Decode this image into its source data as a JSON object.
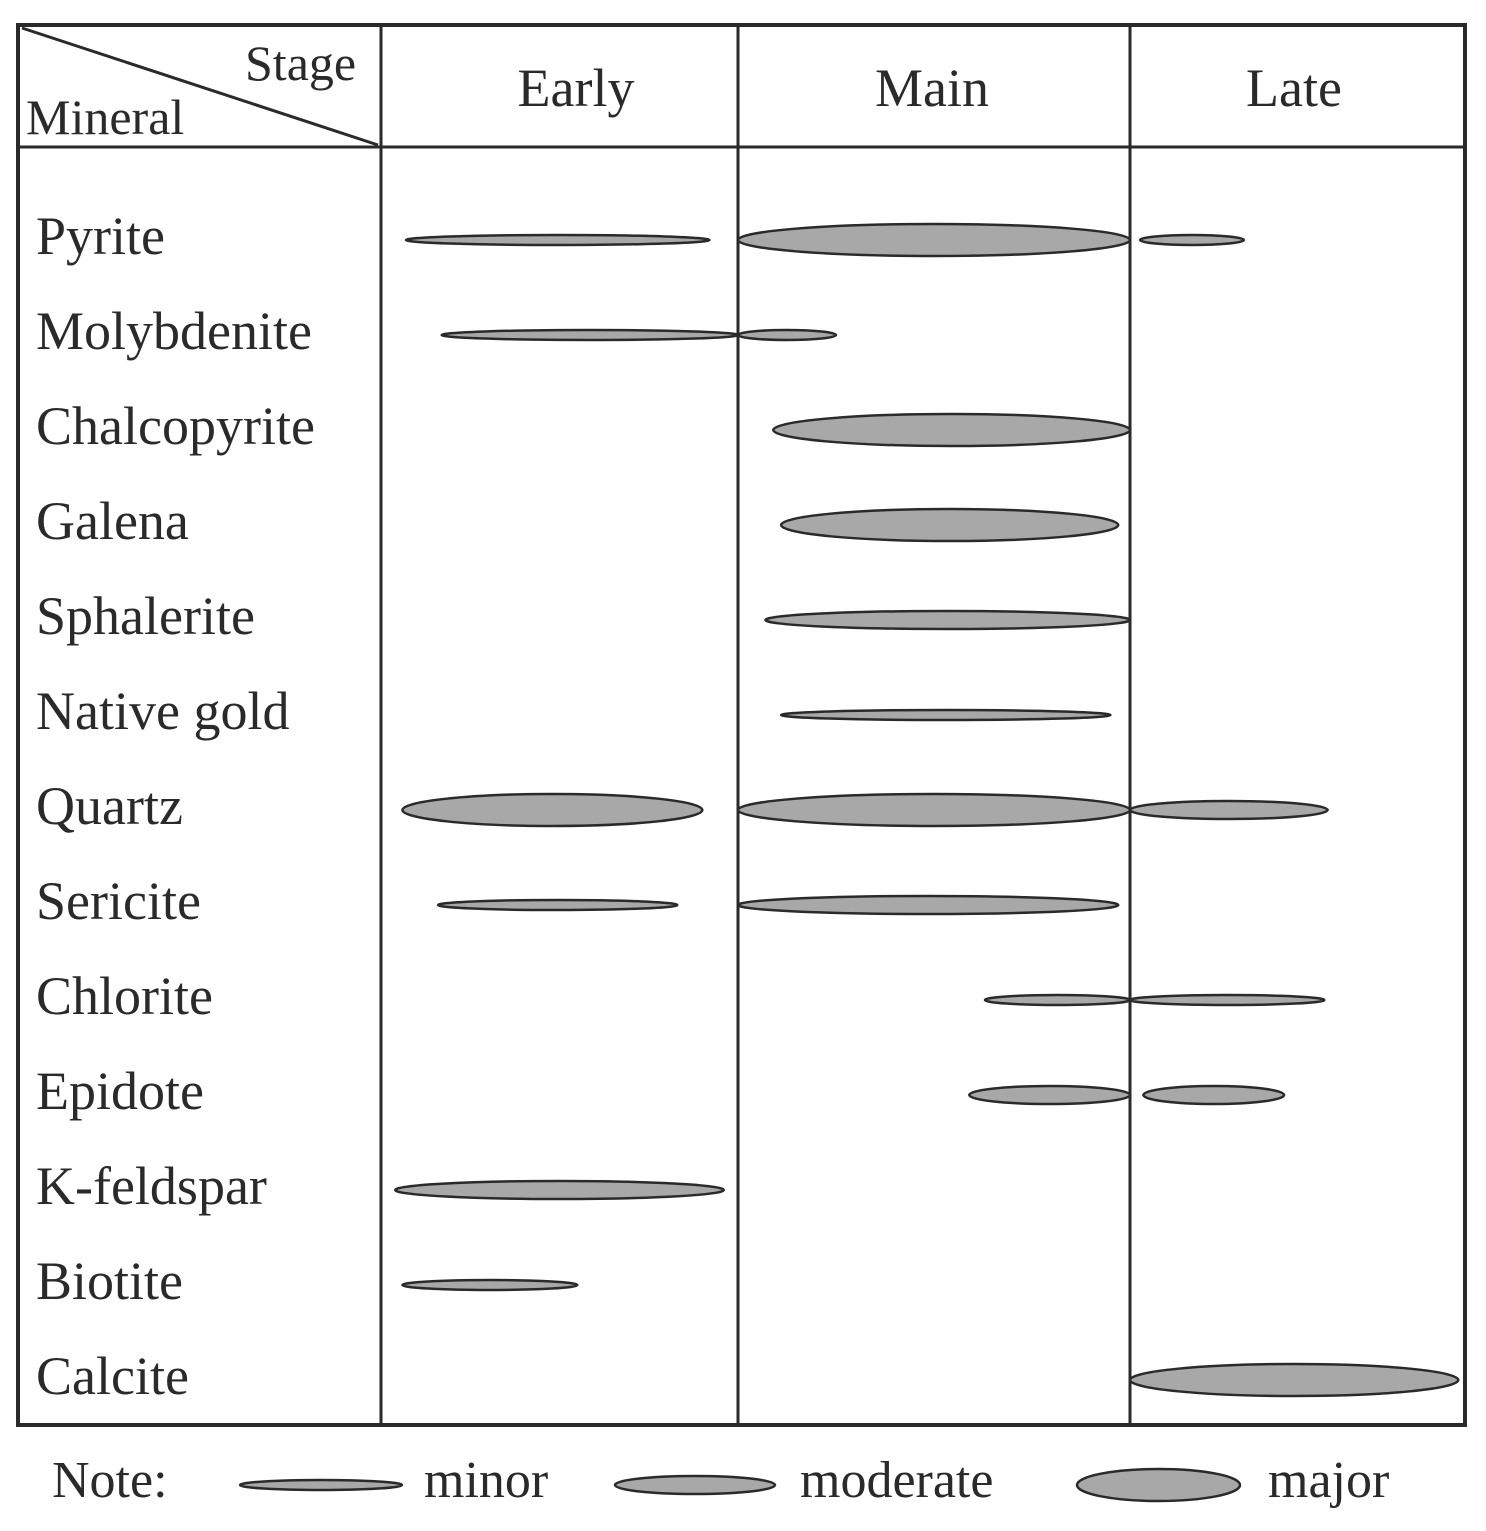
{
  "header": {
    "stage_label": "Stage",
    "mineral_label": "Mineral",
    "stages": [
      "Early",
      "Main",
      "Late"
    ]
  },
  "minerals": [
    {
      "name": "Pyrite",
      "bars": [
        {
          "stage": "Early",
          "from": 0.07,
          "to": 0.92,
          "level": "minor"
        },
        {
          "stage": "Main",
          "from": 0.0,
          "to": 1.0,
          "level": "major"
        },
        {
          "stage": "Late",
          "from": 0.03,
          "to": 0.34,
          "level": "minor"
        }
      ]
    },
    {
      "name": "Molybdenite",
      "bars": [
        {
          "stage": "Early",
          "from": 0.17,
          "to": 1.0,
          "level": "minor"
        },
        {
          "stage": "Main",
          "from": 0.0,
          "to": 0.25,
          "level": "minor"
        }
      ]
    },
    {
      "name": "Chalcopyrite",
      "bars": [
        {
          "stage": "Main",
          "from": 0.09,
          "to": 1.0,
          "level": "major"
        }
      ]
    },
    {
      "name": "Galena",
      "bars": [
        {
          "stage": "Main",
          "from": 0.11,
          "to": 0.97,
          "level": "major"
        }
      ]
    },
    {
      "name": "Sphalerite",
      "bars": [
        {
          "stage": "Main",
          "from": 0.07,
          "to": 1.0,
          "level": "moderate"
        }
      ]
    },
    {
      "name": "Native gold",
      "bars": [
        {
          "stage": "Main",
          "from": 0.11,
          "to": 0.95,
          "level": "minor"
        }
      ]
    },
    {
      "name": "Quartz",
      "bars": [
        {
          "stage": "Early",
          "from": 0.06,
          "to": 0.9,
          "level": "major"
        },
        {
          "stage": "Main",
          "from": 0.0,
          "to": 1.0,
          "level": "major"
        },
        {
          "stage": "Late",
          "from": 0.0,
          "to": 0.59,
          "level": "moderate"
        }
      ]
    },
    {
      "name": "Sericite",
      "bars": [
        {
          "stage": "Early",
          "from": 0.16,
          "to": 0.83,
          "level": "minor"
        },
        {
          "stage": "Main",
          "from": 0.0,
          "to": 0.97,
          "level": "moderate"
        }
      ]
    },
    {
      "name": "Chlorite",
      "bars": [
        {
          "stage": "Main",
          "from": 0.63,
          "to": 1.0,
          "level": "minor"
        },
        {
          "stage": "Late",
          "from": 0.0,
          "to": 0.58,
          "level": "minor"
        }
      ]
    },
    {
      "name": "Epidote",
      "bars": [
        {
          "stage": "Main",
          "from": 0.59,
          "to": 1.0,
          "level": "moderate"
        },
        {
          "stage": "Late",
          "from": 0.04,
          "to": 0.46,
          "level": "moderate"
        }
      ]
    },
    {
      "name": "K-feldspar",
      "bars": [
        {
          "stage": "Early",
          "from": 0.04,
          "to": 0.96,
          "level": "moderate"
        }
      ]
    },
    {
      "name": "Biotite",
      "bars": [
        {
          "stage": "Early",
          "from": 0.06,
          "to": 0.55,
          "level": "minor"
        }
      ]
    },
    {
      "name": "Calcite",
      "bars": [
        {
          "stage": "Late",
          "from": 0.0,
          "to": 0.98,
          "level": "major"
        }
      ]
    }
  ],
  "legend": {
    "note_label": "Note:",
    "items": [
      {
        "level": "minor",
        "label": "minor"
      },
      {
        "level": "moderate",
        "label": "moderate"
      },
      {
        "level": "major",
        "label": "major"
      }
    ]
  },
  "colors": {
    "fill": "#a8a8a8",
    "stroke": "#2a2a2a"
  }
}
